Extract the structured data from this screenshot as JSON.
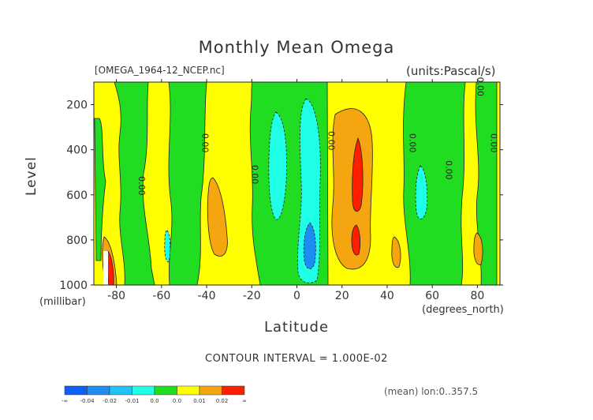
{
  "chart_data": {
    "type": "contour",
    "title": "Monthly Mean Omega",
    "file_label": "[OMEGA_1964-12_NCEP.nc]",
    "units_label": "(units:Pascal/s)",
    "xlabel": "Latitude",
    "xlabel_units": "(degrees_north)",
    "ylabel": "Level",
    "ylabel_units": "(millibar)",
    "xlim": [
      -90,
      90
    ],
    "ylim": [
      1000,
      100
    ],
    "x_ticks": [
      "-80",
      "-60",
      "-40",
      "-20",
      "0",
      "20",
      "40",
      "60",
      "80"
    ],
    "x_tick_values": [
      -80,
      -60,
      -40,
      -20,
      0,
      20,
      40,
      60,
      80
    ],
    "y_ticks": [
      "200",
      "400",
      "600",
      "800",
      "1000"
    ],
    "y_tick_values": [
      200,
      400,
      600,
      800,
      1000
    ],
    "contour_interval": "CONTOUR INTERVAL = 1.000E-02",
    "mean_note": "(mean) lon:0..357.5",
    "contour_labels": [
      {
        "text": "0.00",
        "x": -70,
        "y": 560
      },
      {
        "text": "0.00",
        "x": -42,
        "y": 370
      },
      {
        "text": "0.00",
        "x": -20,
        "y": 510
      },
      {
        "text": "0.00",
        "x": 14,
        "y": 360
      },
      {
        "text": "0.00",
        "x": 50,
        "y": 370
      },
      {
        "text": "0.00",
        "x": 66,
        "y": 490
      },
      {
        "text": "0.00",
        "x": 80,
        "y": 120
      },
      {
        "text": "0.00",
        "x": 86,
        "y": 370
      }
    ],
    "fill_levels": [
      {
        "label": "-∞",
        "color": "#0f5ef5"
      },
      {
        "label": "-0.04",
        "color": "#1e8cf0"
      },
      {
        "label": "-0.02",
        "color": "#1fc3f5"
      },
      {
        "label": "-0.01",
        "color": "#1effe6"
      },
      {
        "label": "0.0",
        "color": "#21dd21"
      },
      {
        "label": "0.0",
        "color": "#ffff00"
      },
      {
        "label": "0.01",
        "color": "#f5a50f"
      },
      {
        "label": "0.02",
        "color": "#ff1e00"
      },
      {
        "label": "∞",
        "color": "#ff1e00"
      }
    ],
    "colors": {
      "background_field": "#ffff00",
      "green": "#21dd21",
      "cyan": "#1effe6",
      "blue": "#1e8cf0",
      "orange": "#f5a50f",
      "red": "#ff1e00"
    }
  }
}
